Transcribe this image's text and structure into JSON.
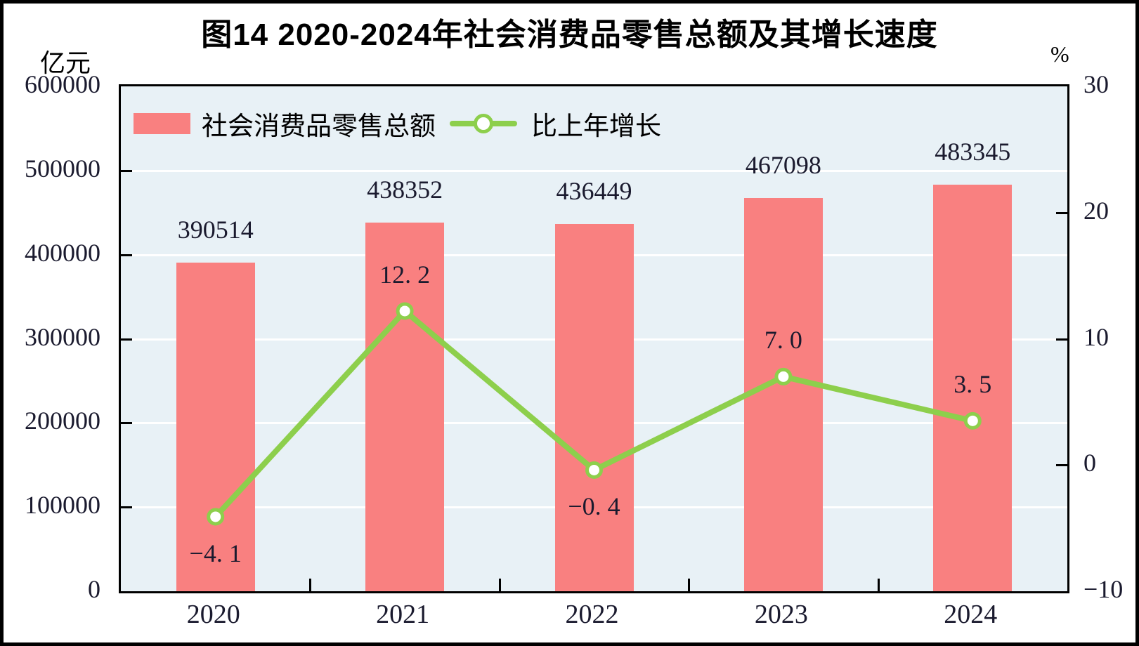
{
  "figure": {
    "title": "图14  2020-2024年社会消费品零售总额及其增长速度",
    "left_axis_unit": "亿元",
    "right_axis_unit": "%"
  },
  "legend": [
    {
      "label": "社会消费品零售总额",
      "marker": "bar-swatch"
    },
    {
      "label": "比上年增长",
      "marker": "line-with-circle"
    }
  ],
  "chart_data": {
    "type": "bar+line",
    "title": "图14  2020-2024年社会消费品零售总额及其增长速度",
    "categories": [
      "2020",
      "2021",
      "2022",
      "2023",
      "2024"
    ],
    "series": [
      {
        "name": "社会消费品零售总额",
        "type": "bar",
        "axis": "left",
        "unit": "亿元",
        "values": [
          390514,
          438352,
          436449,
          467098,
          483345
        ],
        "data_labels": [
          "390514",
          "438352",
          "436449",
          "467098",
          "483345"
        ],
        "color": "#f98080"
      },
      {
        "name": "比上年增长",
        "type": "line",
        "axis": "right",
        "unit": "%",
        "values": [
          -4.1,
          12.2,
          -0.4,
          7.0,
          3.5
        ],
        "data_labels": [
          "−4. 1",
          "12. 2",
          "−0. 4",
          "7. 0",
          "3. 5"
        ],
        "color": "#8dcf4c"
      }
    ],
    "left_axis": {
      "label": "亿元",
      "min": 0,
      "max": 600000,
      "tick_step": 100000,
      "tick_labels": [
        "600000",
        "500000",
        "400000",
        "300000",
        "200000",
        "100000",
        "0"
      ]
    },
    "right_axis": {
      "label": "%",
      "min": -10,
      "max": 30,
      "tick_step": 10,
      "tick_labels": [
        "30",
        "20",
        "10",
        "0",
        "−10"
      ]
    },
    "grid": "horizontal",
    "legend_position": "top-left-inside",
    "colors": {
      "bar": "#f98080",
      "line": "#8dcf4c",
      "marker_fill": "#ffffff",
      "plot_background": "#e8f1f6",
      "gridline": "#ffffff",
      "label_text": "#1a1a2e",
      "border": "#000000"
    }
  }
}
